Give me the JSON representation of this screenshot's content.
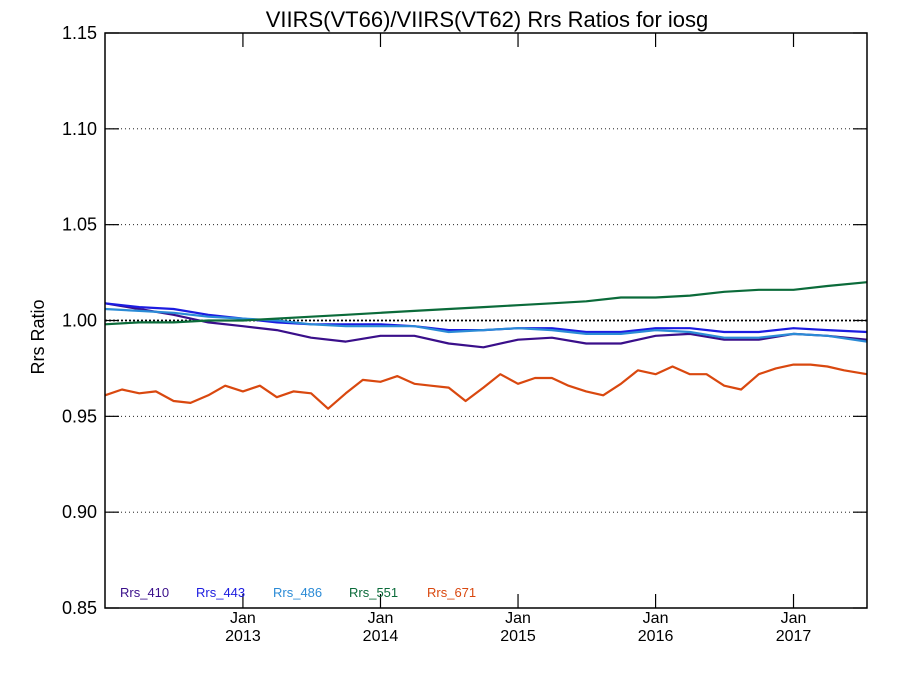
{
  "chart_data": {
    "type": "line",
    "title": "VIIRS(VT66)/VIIRS(VT62)  Rrs Ratios for iosg",
    "xlabel": "",
    "ylabel": "Rrs Ratio",
    "xlim": [
      "2012-01-01",
      "2017-07-15"
    ],
    "ylim": [
      0.85,
      1.15
    ],
    "yticks": [
      "0.85",
      "0.90",
      "0.95",
      "1.00",
      "1.05",
      "1.10",
      "1.15"
    ],
    "xticks": [
      {
        "date": "2013-01-01",
        "month": "Jan",
        "year": "2013"
      },
      {
        "date": "2014-01-01",
        "month": "Jan",
        "year": "2014"
      },
      {
        "date": "2015-01-01",
        "month": "Jan",
        "year": "2015"
      },
      {
        "date": "2016-01-01",
        "month": "Jan",
        "year": "2016"
      },
      {
        "date": "2017-01-01",
        "month": "Jan",
        "year": "2017"
      }
    ],
    "reference_line": 1.0,
    "legend_position": "bottom-left",
    "series": [
      {
        "name": "Rrs_410",
        "color": "#3a0f8a",
        "x": [
          "2012-01-01",
          "2012-04-01",
          "2012-07-01",
          "2012-10-01",
          "2013-01-01",
          "2013-04-01",
          "2013-07-01",
          "2013-10-01",
          "2014-01-01",
          "2014-04-01",
          "2014-07-01",
          "2014-10-01",
          "2015-01-01",
          "2015-04-01",
          "2015-07-01",
          "2015-10-01",
          "2016-01-01",
          "2016-04-01",
          "2016-07-01",
          "2016-10-01",
          "2017-01-01",
          "2017-04-01",
          "2017-07-15"
        ],
        "y": [
          1.009,
          1.006,
          1.003,
          0.999,
          0.997,
          0.995,
          0.991,
          0.989,
          0.992,
          0.992,
          0.988,
          0.986,
          0.99,
          0.991,
          0.988,
          0.988,
          0.992,
          0.993,
          0.99,
          0.99,
          0.993,
          0.992,
          0.99
        ]
      },
      {
        "name": "Rrs_443",
        "color": "#1c1ce0",
        "x": [
          "2012-01-01",
          "2012-04-01",
          "2012-07-01",
          "2012-10-01",
          "2013-01-01",
          "2013-04-01",
          "2013-07-01",
          "2013-10-01",
          "2014-01-01",
          "2014-04-01",
          "2014-07-01",
          "2014-10-01",
          "2015-01-01",
          "2015-04-01",
          "2015-07-01",
          "2015-10-01",
          "2016-01-01",
          "2016-04-01",
          "2016-07-01",
          "2016-10-01",
          "2017-01-01",
          "2017-04-01",
          "2017-07-15"
        ],
        "y": [
          1.009,
          1.007,
          1.006,
          1.003,
          1.001,
          0.999,
          0.998,
          0.998,
          0.998,
          0.997,
          0.995,
          0.995,
          0.996,
          0.996,
          0.994,
          0.994,
          0.996,
          0.996,
          0.994,
          0.994,
          0.996,
          0.995,
          0.994
        ]
      },
      {
        "name": "Rrs_486",
        "color": "#2b8bd6",
        "x": [
          "2012-01-01",
          "2012-04-01",
          "2012-07-01",
          "2012-10-01",
          "2013-01-01",
          "2013-04-01",
          "2013-07-01",
          "2013-10-01",
          "2014-01-01",
          "2014-04-01",
          "2014-07-01",
          "2014-10-01",
          "2015-01-01",
          "2015-04-01",
          "2015-07-01",
          "2015-10-01",
          "2016-01-01",
          "2016-04-01",
          "2016-07-01",
          "2016-10-01",
          "2017-01-01",
          "2017-04-01",
          "2017-07-15"
        ],
        "y": [
          1.006,
          1.005,
          1.004,
          1.002,
          1.001,
          1.0,
          0.998,
          0.997,
          0.997,
          0.997,
          0.994,
          0.995,
          0.996,
          0.995,
          0.993,
          0.993,
          0.995,
          0.994,
          0.991,
          0.991,
          0.993,
          0.992,
          0.989
        ]
      },
      {
        "name": "Rrs_551",
        "color": "#0b6b3a",
        "x": [
          "2012-01-01",
          "2012-04-01",
          "2012-07-01",
          "2012-10-01",
          "2013-01-01",
          "2013-04-01",
          "2013-07-01",
          "2013-10-01",
          "2014-01-01",
          "2014-04-01",
          "2014-07-01",
          "2014-10-01",
          "2015-01-01",
          "2015-04-01",
          "2015-07-01",
          "2015-10-01",
          "2016-01-01",
          "2016-04-01",
          "2016-07-01",
          "2016-10-01",
          "2017-01-01",
          "2017-04-01",
          "2017-07-15"
        ],
        "y": [
          0.998,
          0.999,
          0.999,
          1.0,
          1.0,
          1.001,
          1.002,
          1.003,
          1.004,
          1.005,
          1.006,
          1.007,
          1.008,
          1.009,
          1.01,
          1.012,
          1.012,
          1.013,
          1.015,
          1.016,
          1.016,
          1.018,
          1.02
        ]
      },
      {
        "name": "Rrs_671",
        "color": "#d9480f",
        "x": [
          "2012-01-01",
          "2012-02-15",
          "2012-04-01",
          "2012-05-15",
          "2012-07-01",
          "2012-08-15",
          "2012-10-01",
          "2012-11-15",
          "2013-01-01",
          "2013-02-15",
          "2013-04-01",
          "2013-05-15",
          "2013-07-01",
          "2013-08-15",
          "2013-10-01",
          "2013-11-15",
          "2014-01-01",
          "2014-02-15",
          "2014-04-01",
          "2014-05-15",
          "2014-07-01",
          "2014-08-15",
          "2014-10-01",
          "2014-11-15",
          "2015-01-01",
          "2015-02-15",
          "2015-04-01",
          "2015-05-15",
          "2015-07-01",
          "2015-08-15",
          "2015-10-01",
          "2015-11-15",
          "2016-01-01",
          "2016-02-15",
          "2016-04-01",
          "2016-05-15",
          "2016-07-01",
          "2016-08-15",
          "2016-10-01",
          "2016-11-15",
          "2017-01-01",
          "2017-02-15",
          "2017-04-01",
          "2017-05-15",
          "2017-07-15"
        ],
        "y": [
          0.961,
          0.964,
          0.962,
          0.963,
          0.958,
          0.957,
          0.961,
          0.966,
          0.963,
          0.966,
          0.96,
          0.963,
          0.962,
          0.954,
          0.962,
          0.969,
          0.968,
          0.971,
          0.967,
          0.966,
          0.965,
          0.958,
          0.965,
          0.972,
          0.967,
          0.97,
          0.97,
          0.966,
          0.963,
          0.961,
          0.967,
          0.974,
          0.972,
          0.976,
          0.972,
          0.972,
          0.966,
          0.964,
          0.972,
          0.975,
          0.977,
          0.977,
          0.976,
          0.974,
          0.972
        ]
      }
    ]
  }
}
